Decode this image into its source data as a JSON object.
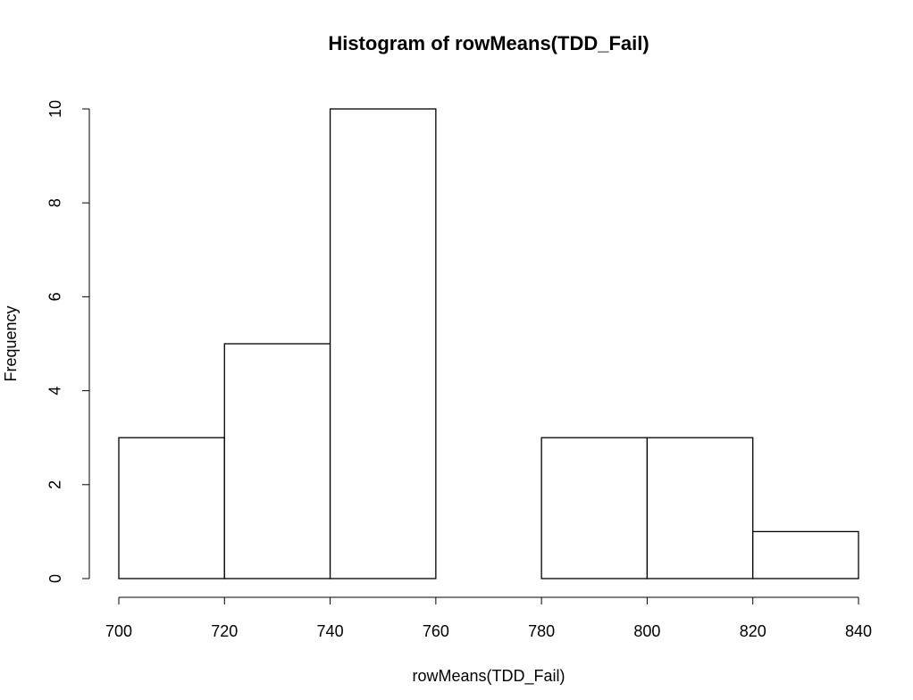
{
  "chart_data": {
    "type": "histogram",
    "title": "Histogram of rowMeans(TDD_Fail)",
    "x_label": "rowMeans(TDD_Fail)",
    "y_label": "Frequency",
    "bins": [
      700,
      720,
      740,
      760,
      780,
      800,
      820,
      840
    ],
    "counts": [
      3,
      5,
      10,
      0,
      3,
      3,
      1
    ],
    "color": "#ffffff",
    "edgecolor": "#000000",
    "xlim": [
      700,
      840
    ],
    "xticks": [
      700,
      720,
      740,
      760,
      780,
      800,
      820,
      840
    ],
    "ylim": [
      0,
      10
    ],
    "yticks": [
      0,
      2,
      4,
      6,
      8,
      10
    ],
    "grid": false
  }
}
